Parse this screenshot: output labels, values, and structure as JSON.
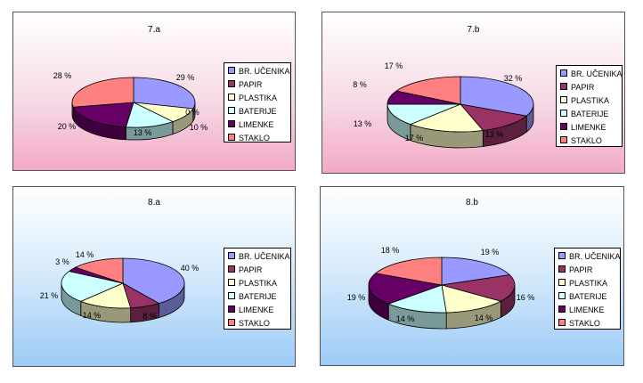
{
  "legend_labels": [
    "BR. UČENIKA",
    "PAPIR",
    "PLASTIKA",
    "BATERIJE",
    "LIMENKE",
    "STAKLO"
  ],
  "colors": [
    "#9999ff",
    "#993366",
    "#ffffcc",
    "#ccffff",
    "#660066",
    "#ff8080"
  ],
  "chart_data": [
    {
      "type": "pie",
      "title": "7.a",
      "categories": [
        "BR. UČENIKA",
        "PAPIR",
        "PLASTIKA",
        "BATERIJE",
        "LIMENKE",
        "STAKLO"
      ],
      "values": [
        29,
        0,
        10,
        13,
        20,
        28
      ],
      "labels": [
        "29 %",
        "0 %",
        "10 %",
        "13 %",
        "20 %",
        "28 %"
      ]
    },
    {
      "type": "pie",
      "title": "7.b",
      "categories": [
        "BR. UČENIKA",
        "PAPIR",
        "PLASTIKA",
        "BATERIJE",
        "LIMENKE",
        "STAKLO"
      ],
      "values": [
        32,
        13,
        17,
        13,
        8,
        17
      ],
      "labels": [
        "32 %",
        "13 %",
        "17 %",
        "13 %",
        "8 %",
        "17 %"
      ]
    },
    {
      "type": "pie",
      "title": "8.a",
      "categories": [
        "BR. UČENIKA",
        "PAPIR",
        "PLASTIKA",
        "BATERIJE",
        "LIMENKE",
        "STAKLO"
      ],
      "values": [
        40,
        8,
        14,
        21,
        3,
        14
      ],
      "labels": [
        "40 %",
        "8 %",
        "14 %",
        "21 %",
        "3 %",
        "14 %"
      ]
    },
    {
      "type": "pie",
      "title": "8.b",
      "categories": [
        "BR. UČENIKA",
        "PAPIR",
        "PLASTIKA",
        "BATERIJE",
        "LIMENKE",
        "STAKLO"
      ],
      "values": [
        19,
        16,
        14,
        14,
        19,
        18
      ],
      "labels": [
        "19 %",
        "16 %",
        "14 %",
        "14 %",
        "19 %",
        "18 %"
      ]
    }
  ]
}
